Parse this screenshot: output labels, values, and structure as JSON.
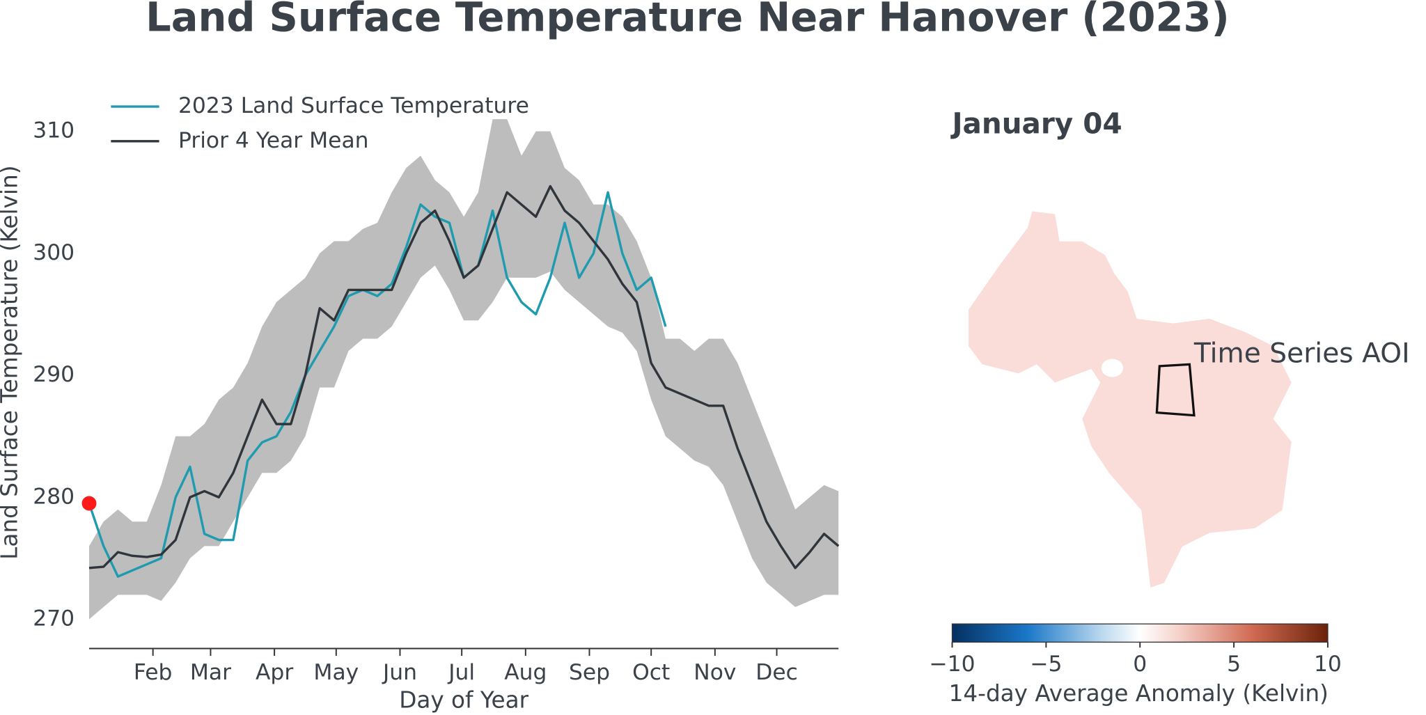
{
  "chart_data": {
    "type": "line",
    "title": "Land Surface Temperature Near Hanover (2023)",
    "xlabel": "Day of Year",
    "ylabel": "Land Surface Temperature (Kelvin)",
    "x": [
      1,
      8,
      15,
      22,
      29,
      36,
      43,
      50,
      57,
      64,
      71,
      78,
      85,
      92,
      99,
      106,
      113,
      120,
      127,
      134,
      141,
      148,
      155,
      162,
      169,
      176,
      183,
      190,
      197,
      204,
      211,
      218,
      225,
      232,
      239,
      246,
      253,
      260,
      267,
      274,
      281,
      288,
      295,
      302,
      309,
      316,
      323,
      330,
      337,
      344,
      351,
      358,
      365
    ],
    "xlim": [
      1,
      365
    ],
    "xticks": [
      {
        "value": 32,
        "label": "Feb"
      },
      {
        "value": 60,
        "label": "Mar"
      },
      {
        "value": 91,
        "label": "Apr"
      },
      {
        "value": 121,
        "label": "May"
      },
      {
        "value": 152,
        "label": "Jun"
      },
      {
        "value": 182,
        "label": "Jul"
      },
      {
        "value": 213,
        "label": "Aug"
      },
      {
        "value": 244,
        "label": "Sep"
      },
      {
        "value": 274,
        "label": "Oct"
      },
      {
        "value": 305,
        "label": "Nov"
      },
      {
        "value": 335,
        "label": "Dec"
      }
    ],
    "ylim": [
      267.6,
      313.3
    ],
    "yticks": [
      270,
      280,
      290,
      300,
      310
    ],
    "legend": "upper left",
    "series": [
      {
        "name": "2023 Land Surface Temperature",
        "color": "#1f9bb0",
        "values": [
          279.5,
          276,
          273.5,
          274,
          274.5,
          275,
          280,
          282.5,
          277,
          276.5,
          276.5,
          283,
          284.5,
          285,
          287,
          290,
          292,
          294,
          296.5,
          297,
          296.5,
          297.5,
          300.5,
          304,
          303,
          302.5,
          298,
          299,
          303.5,
          298,
          296,
          295,
          298,
          302.5,
          298,
          300,
          305,
          300,
          297,
          298,
          294,
          null,
          null,
          null,
          null,
          null,
          null,
          null,
          null,
          null,
          null,
          null,
          null
        ]
      },
      {
        "name": "Prior 4 Year Mean",
        "color": "#2f353b",
        "values": [
          274.2,
          274.3,
          275.5,
          275.2,
          275.1,
          275.3,
          276.5,
          280,
          280.5,
          280,
          282,
          285,
          288,
          286,
          286,
          290,
          295.5,
          294.5,
          297,
          297,
          297,
          297,
          300,
          302.5,
          303.5,
          301,
          298,
          299,
          302,
          305,
          304,
          303,
          305.5,
          303.5,
          302.5,
          301,
          299.5,
          297.5,
          296,
          291,
          289,
          288.5,
          288,
          287.5,
          287.5,
          284,
          281,
          278,
          276,
          274.2,
          275.5,
          277,
          276
        ]
      }
    ],
    "band": {
      "color": "#bdbdbd",
      "upper": [
        276,
        278,
        279,
        278,
        278,
        281,
        285,
        285,
        286,
        288,
        289,
        291,
        294,
        296,
        297,
        298,
        300,
        301,
        301,
        302,
        302.5,
        305,
        307,
        308,
        306,
        305,
        303,
        305,
        311,
        311,
        308,
        310,
        310,
        307,
        306,
        304,
        304,
        303,
        301,
        298,
        293,
        293,
        292,
        293,
        293,
        291,
        288,
        285,
        282,
        279,
        280,
        281,
        280.5
      ],
      "lower": [
        270,
        271,
        272,
        272,
        272,
        271.5,
        273,
        275,
        276,
        276,
        278,
        280,
        282,
        282,
        283,
        285,
        289,
        289,
        292,
        293,
        293,
        294,
        296,
        298,
        299,
        297,
        294.5,
        294.5,
        296,
        298,
        298,
        298,
        298.5,
        297,
        296,
        295,
        294,
        293.5,
        292,
        288,
        285,
        284,
        283,
        282.5,
        281,
        278,
        275,
        273,
        272,
        271,
        271.5,
        272,
        272
      ]
    },
    "marker_color": "#ff1a1a"
  },
  "map": {
    "title": "January 04",
    "annotation": "Time Series AOI",
    "colorbar": {
      "label": "14-day Average Anomaly (Kelvin)",
      "lim": [
        -10,
        10
      ],
      "ticks": [
        {
          "value": -10,
          "label": "−10"
        },
        {
          "value": -5,
          "label": "−5"
        },
        0,
        5,
        10
      ]
    }
  }
}
